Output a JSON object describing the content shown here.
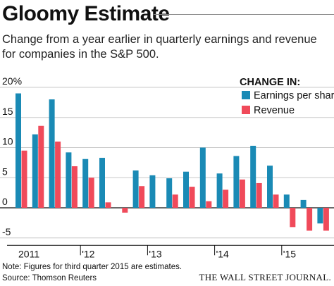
{
  "chart_data": {
    "type": "bar",
    "title": "Gloomy Estimate",
    "subtitle": "Change from a year earlier in quarterly earnings and revenue for companies in the S&P 500.",
    "legend_title": "CHANGE IN:",
    "legend_position": "top-right",
    "y_tick_labels": [
      "20%",
      "15",
      "10",
      "5",
      "0",
      "-5"
    ],
    "y_ticks": [
      20,
      15,
      10,
      5,
      0,
      -5
    ],
    "ylim": [
      -6,
      21
    ],
    "grid": true,
    "x_tick_labels": [
      "2011",
      "'12",
      "'13",
      "'14",
      "'15"
    ],
    "categories": [
      "Q1 2011",
      "Q2 2011",
      "Q3 2011",
      "Q4 2011",
      "Q1 2012",
      "Q2 2012",
      "Q3 2012",
      "Q4 2012",
      "Q1 2013",
      "Q2 2013",
      "Q3 2013",
      "Q4 2013",
      "Q1 2014",
      "Q2 2014",
      "Q3 2014",
      "Q4 2014",
      "Q1 2015",
      "Q2 2015",
      "Q3 2015"
    ],
    "series": [
      {
        "name": "Earnings per share",
        "color": "#1a8ab5",
        "values": [
          19.0,
          12.2,
          18.0,
          9.2,
          8.1,
          8.3,
          0.0,
          6.2,
          5.4,
          4.9,
          6.0,
          10.0,
          5.7,
          8.6,
          10.3,
          7.0,
          2.2,
          1.3,
          -2.6
        ]
      },
      {
        "name": "Revenue",
        "color": "#f04a5a",
        "values": [
          9.5,
          13.6,
          11.0,
          6.9,
          5.0,
          0.9,
          -0.8,
          3.6,
          0.0,
          2.2,
          3.5,
          1.1,
          3.0,
          4.7,
          4.1,
          2.2,
          -3.2,
          -3.8,
          -3.8
        ]
      }
    ]
  },
  "footer": {
    "note": "Note: Figures for third quarter 2015 are estimates.",
    "source": "Source: Thomson Reuters",
    "brand": "THE WALL STREET JOURNAL."
  }
}
